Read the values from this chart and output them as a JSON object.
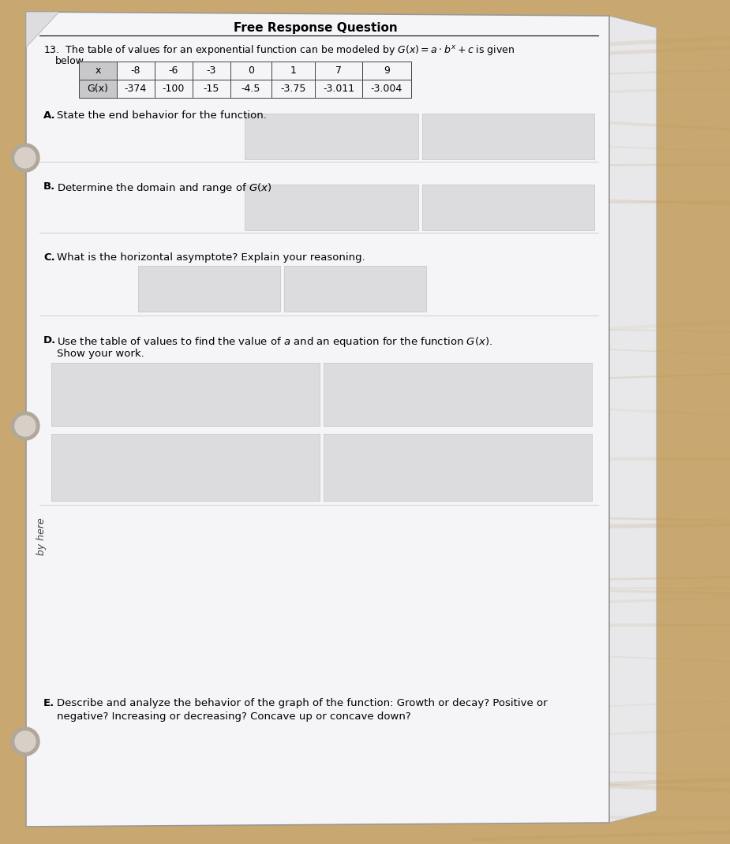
{
  "title": "Free Response Question",
  "intro_line1": "13.  The table of values for an exponential function can be modeled by $G(x) = a \\cdot b^x + c$ is given",
  "intro_line2": "below.",
  "table_x_headers": [
    "x",
    "-8",
    "-6",
    "-3",
    "0",
    "1",
    "7",
    "9"
  ],
  "table_gx_values": [
    "G(x)",
    "-374",
    "-100",
    "-15",
    "-4.5",
    "-3.75",
    "-3.011",
    "-3.004"
  ],
  "part_A_label": "A.",
  "part_A_text": "State the end behavior for the function.",
  "part_B_label": "B.",
  "part_B_text": "Determine the domain and range of $G(x)$",
  "part_C_label": "C.",
  "part_C_text": "What is the horizontal asymptote? Explain your reasoning.",
  "part_D_label": "D.",
  "part_D_text1": "Use the table of values to find the value of $a$ and an equation for the function $G(x)$.",
  "part_D_text2": "Show your work.",
  "part_E_label": "E.",
  "part_E_text1": "Describe and analyze the behavior of the graph of the function: Growth or decay? Positive or",
  "part_E_text2": "negative? Increasing or decreasing? Concave up or concave down?",
  "by_here_text": "by here",
  "wood_color": "#c8a870",
  "wood_color2": "#b8955a",
  "paper_color": "#f5f5f7",
  "paper_color2": "#eeeeef",
  "line_color": "#c8c8cc",
  "shaded_box_color": "#dcdcde",
  "table_header_bg": "#c8c8ca",
  "border_color": "#888888",
  "title_fontsize": 11,
  "body_fontsize": 9.5,
  "table_fontsize": 9
}
